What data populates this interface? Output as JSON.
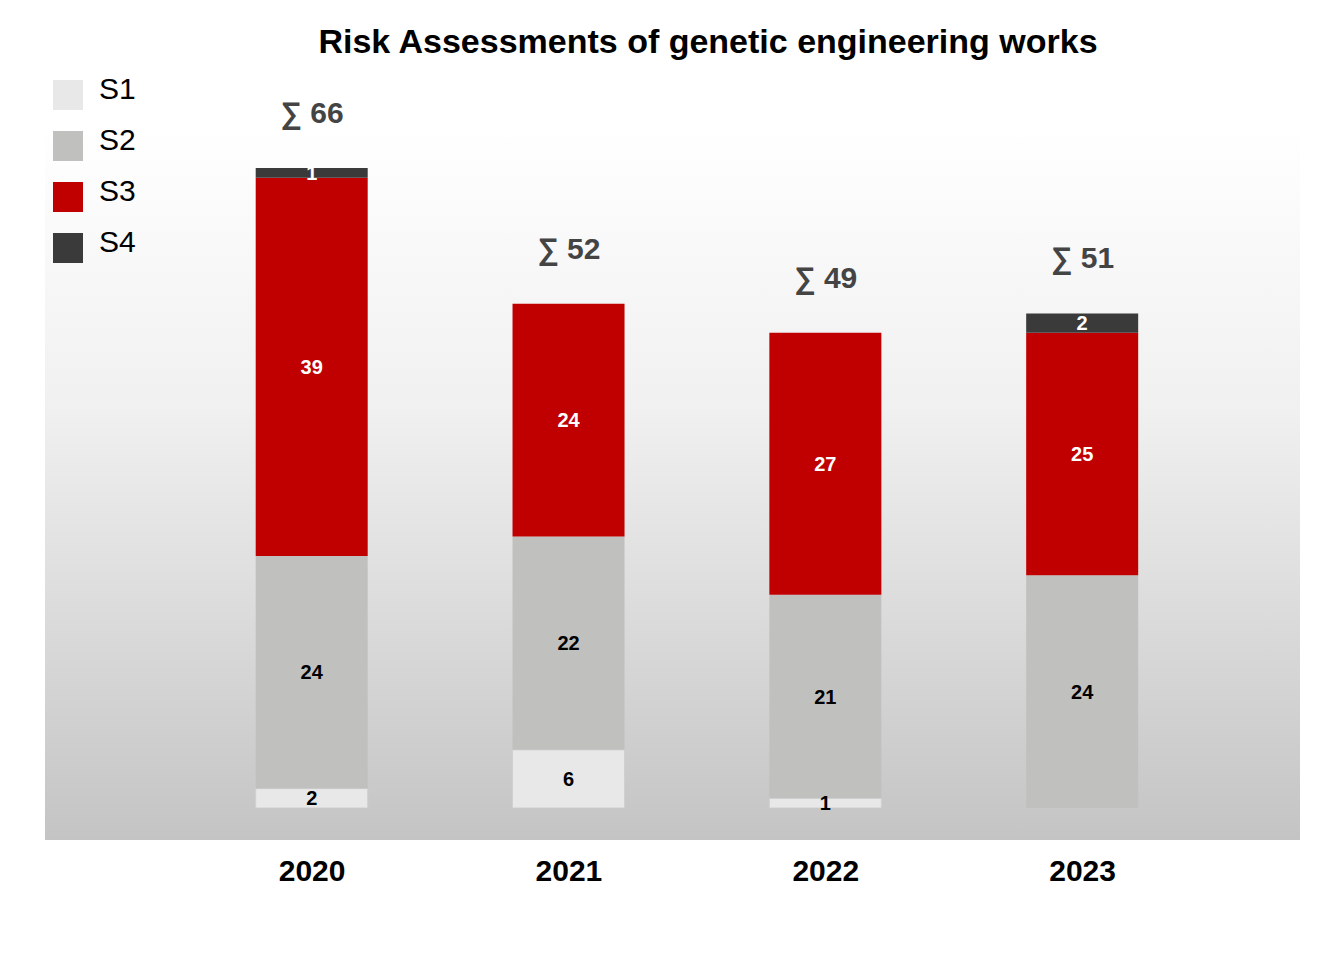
{
  "chart_data": {
    "type": "bar",
    "title": "Risk Assessments of genetic engineering works",
    "categories": [
      "2020",
      "2021",
      "2022",
      "2023"
    ],
    "series": [
      {
        "name": "S1",
        "color": "#e8e8e8",
        "values": [
          2,
          6,
          1,
          null
        ]
      },
      {
        "name": "S2",
        "color": "#c0c1bf",
        "values": [
          24,
          22,
          21,
          24
        ]
      },
      {
        "name": "S3",
        "color": "#c00000",
        "values": [
          39,
          24,
          27,
          25
        ]
      },
      {
        "name": "S4",
        "color": "#3a3a3a",
        "values": [
          1,
          null,
          null,
          2
        ]
      }
    ],
    "stacked": true,
    "data_labels": true,
    "legend": "upper left",
    "tick_labels": "x",
    "grid": false,
    "totals": {
      "values": [
        66,
        52,
        49,
        51
      ],
      "value_labels": [
        "∑ 66",
        "∑ 52",
        "∑ 49",
        "∑ 51"
      ]
    }
  }
}
